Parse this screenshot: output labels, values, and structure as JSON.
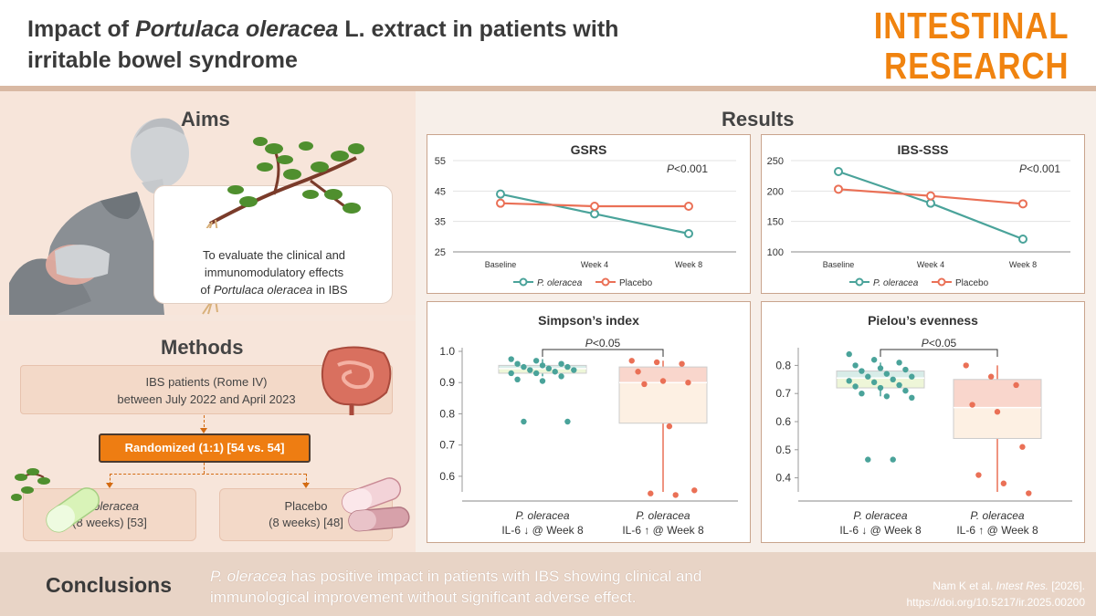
{
  "header": {
    "title_part1": "Impact of ",
    "title_italic": "Portulaca oleracea",
    "title_part2": " L. extract in patients with",
    "title_line2": "irritable bowel syndrome",
    "brand_line1": "INTESTINAL",
    "brand_line2": "RESEARCH",
    "brand_color": "#f0830f"
  },
  "aims": {
    "title": "Aims",
    "text_line1": "To evaluate the clinical and",
    "text_line2": "immunomodulatory effects",
    "text_line3_prefix": "of ",
    "text_line3_italic": "Portulaca oleracea",
    "text_line3_suffix": " in IBS"
  },
  "methods": {
    "title": "Methods",
    "patients_line1": "IBS patients (Rome IV)",
    "patients_line2": "between July 2022 and April 2023",
    "randomized": "Randomized (1:1) [54 vs. 54]",
    "arm1_name": "P. oleracea",
    "arm1_detail": "(8 weeks) [53]",
    "arm2_name": "Placebo",
    "arm2_detail": "(8 weeks) [48]"
  },
  "results": {
    "title": "Results"
  },
  "colors": {
    "p_oleracea": "#4aa39a",
    "placebo": "#ea7056"
  },
  "chart_data": [
    {
      "type": "line",
      "title": "GSRS",
      "categories": [
        "Baseline",
        "Week 4",
        "Week 8"
      ],
      "series": [
        {
          "name": "P. oleracea",
          "values": [
            44,
            37.5,
            31
          ]
        },
        {
          "name": "Placebo",
          "values": [
            41,
            40,
            40
          ]
        }
      ],
      "yticks": [
        "55",
        "45",
        "35",
        "25"
      ],
      "ylim": [
        25,
        55
      ],
      "annotation_italic": "P",
      "annotation": "<0.001"
    },
    {
      "type": "line",
      "title": "IBS-SSS",
      "categories": [
        "Baseline",
        "Week 4",
        "Week 8"
      ],
      "series": [
        {
          "name": "P. oleracea",
          "values": [
            232,
            180,
            121
          ]
        },
        {
          "name": "Placebo",
          "values": [
            203,
            192,
            179
          ]
        }
      ],
      "yticks": [
        "250",
        "200",
        "150",
        "100"
      ],
      "ylim": [
        100,
        250
      ],
      "annotation_italic": "P",
      "annotation": "<0.001"
    },
    {
      "type": "box",
      "title": "Simpson’s index",
      "yticks": [
        "1.0",
        "0.9",
        "0.8",
        "0.7",
        "0.6"
      ],
      "ylim": [
        0.55,
        1.0
      ],
      "annotation_italic": "P",
      "annotation": "<0.05",
      "groups": [
        {
          "name": "P. oleracea",
          "label": "IL-6 ↓ @ Week 8",
          "q1": 0.93,
          "median": 0.945,
          "q3": 0.955,
          "whisker_low": 0.92,
          "whisker_high": 0.975,
          "points": [
            0.975,
            0.97,
            0.96,
            0.96,
            0.955,
            0.95,
            0.95,
            0.945,
            0.94,
            0.94,
            0.935,
            0.93,
            0.93,
            0.92,
            0.91,
            0.905,
            0.775,
            0.775
          ]
        },
        {
          "name": "P. oleracea",
          "label": "IL-6 ↑ @ Week 8",
          "q1": 0.77,
          "median": 0.9,
          "q3": 0.95,
          "whisker_low": 0.55,
          "whisker_high": 0.97,
          "points": [
            0.97,
            0.965,
            0.96,
            0.935,
            0.905,
            0.9,
            0.895,
            0.76,
            0.555,
            0.545,
            0.54
          ]
        }
      ]
    },
    {
      "type": "box",
      "title": "Pielou’s evenness",
      "yticks": [
        "0.8",
        "0.7",
        "0.6",
        "0.5",
        "0.4"
      ],
      "ylim": [
        0.35,
        0.85
      ],
      "annotation_italic": "P",
      "annotation": "<0.05",
      "groups": [
        {
          "name": "P. oleracea",
          "label": "IL-6 ↓ @ Week 8",
          "q1": 0.72,
          "median": 0.755,
          "q3": 0.78,
          "whisker_low": 0.69,
          "whisker_high": 0.81,
          "points": [
            0.84,
            0.82,
            0.81,
            0.8,
            0.79,
            0.785,
            0.78,
            0.77,
            0.76,
            0.76,
            0.75,
            0.745,
            0.74,
            0.73,
            0.725,
            0.72,
            0.71,
            0.7,
            0.69,
            0.685,
            0.465,
            0.465
          ]
        },
        {
          "name": "P. oleracea",
          "label": "IL-6 ↑ @ Week 8",
          "q1": 0.54,
          "median": 0.65,
          "q3": 0.75,
          "whisker_low": 0.35,
          "whisker_high": 0.8,
          "points": [
            0.8,
            0.76,
            0.73,
            0.66,
            0.635,
            0.51,
            0.41,
            0.38,
            0.345
          ]
        }
      ]
    }
  ],
  "conclusions": {
    "title": "Conclusions",
    "text_italic": "P. oleracea",
    "text_line1": " has positive impact in patients with IBS showing clinical and",
    "text_line2": "immunological improvement without significant adverse effect."
  },
  "citation": {
    "authors": "Nam K et al. ",
    "journal": "Intest Res.",
    "year": " [2026].",
    "doi": "https://doi.org/10.5217/ir.2025.00200"
  }
}
